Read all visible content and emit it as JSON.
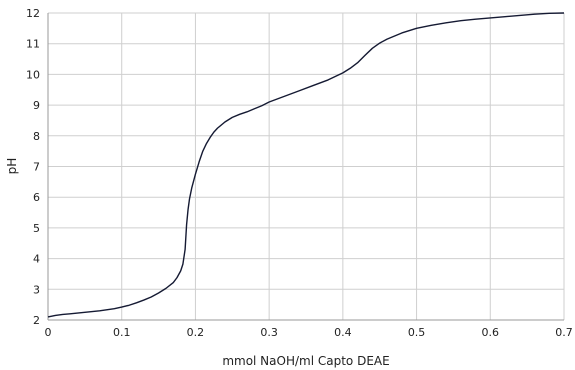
{
  "chart_data": {
    "type": "line",
    "title": "",
    "xlabel": "mmol NaOH/ml Capto DEAE",
    "ylabel": "pH",
    "xlim": [
      0,
      0.7
    ],
    "ylim": [
      2,
      12
    ],
    "x_ticks": [
      0,
      0.1,
      0.2,
      0.3,
      0.4,
      0.5,
      0.6,
      0.7
    ],
    "x_tick_labels": [
      "0",
      "0.1",
      "0.2",
      "0.3",
      "0.4",
      "0.5",
      "0.6",
      "0.7"
    ],
    "y_ticks": [
      2,
      3,
      4,
      5,
      6,
      7,
      8,
      9,
      10,
      11,
      12
    ],
    "y_tick_labels": [
      "2",
      "3",
      "4",
      "5",
      "6",
      "7",
      "8",
      "9",
      "10",
      "11",
      "12"
    ],
    "grid": true,
    "colors": {
      "curve": "#151a33",
      "grid": "#cfcfcf"
    },
    "series": [
      {
        "x": [
          0.0,
          0.01,
          0.02,
          0.03,
          0.05,
          0.07,
          0.09,
          0.1,
          0.11,
          0.12,
          0.13,
          0.14,
          0.15,
          0.16,
          0.17,
          0.175,
          0.18,
          0.183,
          0.186,
          0.188,
          0.19,
          0.192,
          0.195,
          0.2,
          0.205,
          0.21,
          0.215,
          0.22,
          0.225,
          0.23,
          0.24,
          0.25,
          0.26,
          0.27,
          0.28,
          0.29,
          0.3,
          0.32,
          0.34,
          0.36,
          0.38,
          0.4,
          0.41,
          0.42,
          0.43,
          0.44,
          0.45,
          0.46,
          0.48,
          0.5,
          0.52,
          0.54,
          0.56,
          0.58,
          0.6,
          0.62,
          0.64,
          0.66,
          0.68,
          0.7
        ],
        "y": [
          2.1,
          2.15,
          2.18,
          2.2,
          2.25,
          2.3,
          2.37,
          2.42,
          2.48,
          2.56,
          2.65,
          2.75,
          2.88,
          3.03,
          3.22,
          3.38,
          3.6,
          3.82,
          4.3,
          5.1,
          5.6,
          5.95,
          6.3,
          6.75,
          7.15,
          7.5,
          7.75,
          7.95,
          8.12,
          8.25,
          8.45,
          8.6,
          8.7,
          8.78,
          8.88,
          8.98,
          9.1,
          9.28,
          9.46,
          9.64,
          9.82,
          10.05,
          10.2,
          10.38,
          10.62,
          10.85,
          11.02,
          11.15,
          11.35,
          11.5,
          11.6,
          11.68,
          11.75,
          11.8,
          11.84,
          11.88,
          11.92,
          11.96,
          11.99,
          12.0
        ]
      }
    ]
  }
}
